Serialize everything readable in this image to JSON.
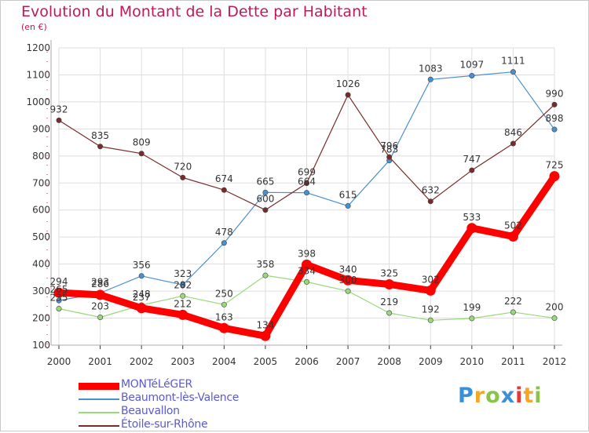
{
  "chart_data": {
    "type": "line",
    "title": "Evolution du Montant de la Dette par Habitant",
    "subtitle": "(en €)",
    "xlabel": "",
    "ylabel": "",
    "x": [
      "2000",
      "2001",
      "2002",
      "2003",
      "2004",
      "2005",
      "2006",
      "2007",
      "2008",
      "2009",
      "2010",
      "2011",
      "2012"
    ],
    "ylim": [
      100,
      1200
    ],
    "yticks": [
      100,
      200,
      300,
      400,
      500,
      600,
      700,
      800,
      900,
      1000,
      1100,
      1200
    ],
    "grid": true,
    "legend_position": "bottom-left",
    "series": [
      {
        "name": "MONTéLéGER",
        "color": "#ff0000",
        "values": [
          294,
          286,
          237,
          212,
          163,
          134,
          398,
          340,
          325,
          302,
          533,
          502,
          725
        ]
      },
      {
        "name": "Beaumont-lès-Valence",
        "color": "#4a90d0",
        "values": [
          265,
          293,
          356,
          323,
          478,
          665,
          664,
          615,
          783,
          1083,
          1097,
          1111,
          898
        ]
      },
      {
        "name": "Beauvallon",
        "color": "#99d97a",
        "values": [
          235,
          203,
          248,
          282,
          250,
          358,
          334,
          300,
          219,
          192,
          199,
          222,
          200
        ]
      },
      {
        "name": "Étoile-sur-Rhône",
        "color": "#7a2a2a",
        "values": [
          932,
          835,
          809,
          720,
          674,
          600,
          699,
          1026,
          796,
          632,
          747,
          846,
          990
        ]
      }
    ]
  },
  "logo": {
    "text": "Proxiti",
    "colors": [
      "#3a8fd6",
      "#f5a623",
      "#8bc34a",
      "#3a8fd6",
      "#e53935",
      "#f5a623",
      "#8bc34a"
    ]
  }
}
